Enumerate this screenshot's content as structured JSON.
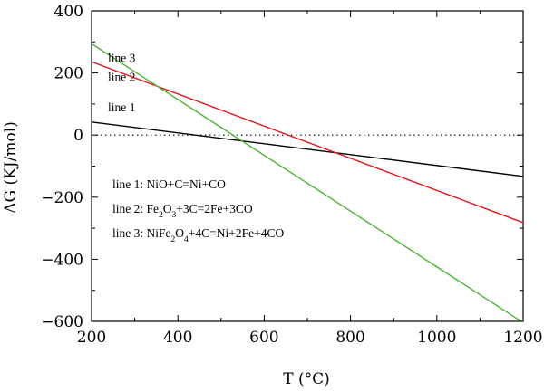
{
  "chart_data": {
    "type": "line",
    "title": "",
    "xlabel": "T (°C)",
    "ylabel": "ΔG (KJ/mol)",
    "xlim": [
      200,
      1200
    ],
    "ylim": [
      -600,
      400
    ],
    "xticks": [
      200,
      400,
      600,
      800,
      1000,
      1200
    ],
    "yticks": [
      -600,
      -400,
      -200,
      0,
      200,
      400
    ],
    "xtick_labels": [
      "200",
      "400",
      "600",
      "800",
      "1000",
      "1200"
    ],
    "ytick_labels": [
      "−600",
      "−400",
      "−200",
      "0",
      "200",
      "400"
    ],
    "grid": false,
    "zero_line": "dotted",
    "series": [
      {
        "name": "line 1",
        "label": "line 1",
        "color": "#000000",
        "x": [
          200,
          1200
        ],
        "y": [
          42,
          -133
        ]
      },
      {
        "name": "line 2",
        "label": "line 2",
        "color": "#e8171c",
        "x": [
          200,
          1200
        ],
        "y": [
          236,
          -282
        ]
      },
      {
        "name": "line 3",
        "label": "line 3",
        "color": "#4cb337",
        "x": [
          200,
          1200
        ],
        "y": [
          294,
          -604
        ]
      }
    ],
    "legend": {
      "placement": "lower-left",
      "entries": [
        {
          "prefix": "line 1: ",
          "parts": [
            {
              "t": "NiO+C=Ni+CO"
            }
          ]
        },
        {
          "prefix": "line 2: ",
          "parts": [
            {
              "t": "Fe"
            },
            {
              "t": "2",
              "sub": true
            },
            {
              "t": "O"
            },
            {
              "t": "3",
              "sub": true
            },
            {
              "t": "+3C=2Fe+3CO"
            }
          ]
        },
        {
          "prefix": "line 3: ",
          "parts": [
            {
              "t": "NiFe"
            },
            {
              "t": "2",
              "sub": true
            },
            {
              "t": "O"
            },
            {
              "t": "4",
              "sub": true
            },
            {
              "t": "+4C=Ni+2Fe+4CO"
            }
          ]
        }
      ]
    }
  }
}
